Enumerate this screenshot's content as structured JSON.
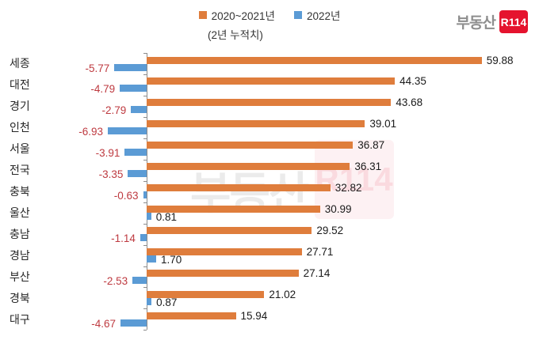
{
  "legend": [
    {
      "label": "2020~2021년",
      "color": "#df7d3c"
    },
    {
      "label": "2022년",
      "color": "#5b9bd5"
    }
  ],
  "subtitle": "(2년 누적치)",
  "logo": {
    "prefix": "부동산",
    "badge": "R114"
  },
  "watermark": {
    "text": "부동산",
    "badge": "R114"
  },
  "colors": {
    "orange_series": "#df7d3c",
    "blue_series": "#5b9bd5",
    "negative_label": "#be3a40",
    "positive_label": "#1a1a1a",
    "axis": "#8c8c8c"
  },
  "chart_data": {
    "type": "bar",
    "orientation": "horizontal",
    "title": "",
    "subtitle": "(2년 누적치)",
    "legend_position": "top",
    "grid": false,
    "xlim": [
      -10,
      65
    ],
    "categories": [
      "세종",
      "대전",
      "경기",
      "인천",
      "서울",
      "전국",
      "충북",
      "울산",
      "충남",
      "경남",
      "부산",
      "경북",
      "대구"
    ],
    "series": [
      {
        "name": "2020~2021년",
        "color": "#df7d3c",
        "values": [
          59.88,
          44.35,
          43.68,
          39.01,
          36.87,
          36.31,
          32.82,
          30.99,
          29.52,
          27.71,
          27.14,
          21.02,
          15.94
        ]
      },
      {
        "name": "2022년",
        "color": "#5b9bd5",
        "values": [
          -5.77,
          -4.79,
          -2.79,
          -6.93,
          -3.91,
          -3.35,
          -0.63,
          0.81,
          -1.14,
          1.7,
          -2.53,
          0.87,
          -4.67
        ]
      }
    ]
  }
}
